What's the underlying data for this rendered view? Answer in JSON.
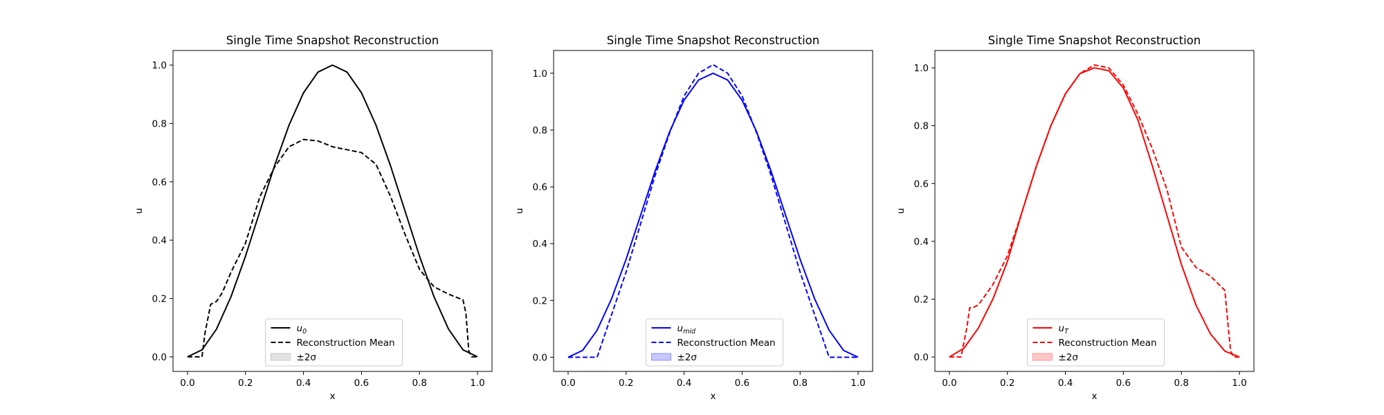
{
  "chart_data": [
    {
      "type": "line",
      "title": "Single Time Snapshot Reconstruction",
      "xlabel": "x",
      "ylabel": "u",
      "xlim": [
        -0.05,
        1.05
      ],
      "ylim": [
        -0.05,
        1.05
      ],
      "xticks": [
        "0.0",
        "0.2",
        "0.4",
        "0.6",
        "0.8",
        "1.0"
      ],
      "yticks": [
        "0.0",
        "0.2",
        "0.4",
        "0.6",
        "0.8",
        "1.0"
      ],
      "grid": false,
      "legend_position": "bottom-center",
      "color": "#000000",
      "band_color": "#808080",
      "series": [
        {
          "name": "u_0",
          "label_main": "u",
          "label_sub": "0",
          "style": "solid",
          "x": [
            0.0,
            0.05,
            0.1,
            0.15,
            0.2,
            0.25,
            0.3,
            0.35,
            0.4,
            0.45,
            0.5,
            0.55,
            0.6,
            0.65,
            0.7,
            0.75,
            0.8,
            0.85,
            0.9,
            0.95,
            1.0
          ],
          "y": [
            0.0,
            0.024,
            0.095,
            0.206,
            0.345,
            0.5,
            0.655,
            0.794,
            0.905,
            0.976,
            1.0,
            0.976,
            0.905,
            0.794,
            0.655,
            0.5,
            0.345,
            0.206,
            0.095,
            0.024,
            0.0
          ]
        },
        {
          "name": "Reconstruction Mean",
          "style": "dashed",
          "x": [
            0.0,
            0.05,
            0.06,
            0.08,
            0.1,
            0.12,
            0.15,
            0.2,
            0.25,
            0.3,
            0.35,
            0.4,
            0.45,
            0.5,
            0.55,
            0.6,
            0.65,
            0.7,
            0.75,
            0.8,
            0.85,
            0.9,
            0.95,
            0.96,
            0.97,
            0.98,
            1.0
          ],
          "y": [
            0.0,
            0.0,
            0.08,
            0.18,
            0.19,
            0.22,
            0.29,
            0.39,
            0.55,
            0.65,
            0.72,
            0.745,
            0.74,
            0.72,
            0.71,
            0.7,
            0.66,
            0.55,
            0.42,
            0.3,
            0.24,
            0.215,
            0.195,
            0.15,
            0.02,
            0.0,
            0.0
          ]
        }
      ],
      "band": {
        "name": "±2σ",
        "lower": [],
        "upper": []
      }
    },
    {
      "type": "line",
      "title": "Single Time Snapshot Reconstruction",
      "xlabel": "x",
      "ylabel": "u",
      "xlim": [
        -0.05,
        1.05
      ],
      "ylim": [
        -0.05,
        1.08
      ],
      "xticks": [
        "0.0",
        "0.2",
        "0.4",
        "0.6",
        "0.8",
        "1.0"
      ],
      "yticks": [
        "0.0",
        "0.2",
        "0.4",
        "0.6",
        "0.8",
        "1.0"
      ],
      "grid": false,
      "legend_position": "bottom-center",
      "color": "#0000ff",
      "band_color": "#0000ff",
      "series": [
        {
          "name": "u_mid",
          "label_main": "u",
          "label_sub": "mid",
          "style": "solid",
          "x": [
            0.0,
            0.05,
            0.1,
            0.15,
            0.2,
            0.25,
            0.3,
            0.35,
            0.4,
            0.45,
            0.5,
            0.55,
            0.6,
            0.65,
            0.7,
            0.75,
            0.8,
            0.85,
            0.9,
            0.95,
            1.0
          ],
          "y": [
            0.0,
            0.024,
            0.095,
            0.206,
            0.345,
            0.5,
            0.655,
            0.794,
            0.905,
            0.976,
            1.0,
            0.976,
            0.905,
            0.794,
            0.655,
            0.5,
            0.345,
            0.206,
            0.095,
            0.024,
            0.0
          ]
        },
        {
          "name": "Reconstruction Mean",
          "style": "dashed",
          "x": [
            0.0,
            0.05,
            0.1,
            0.15,
            0.2,
            0.25,
            0.3,
            0.35,
            0.4,
            0.45,
            0.5,
            0.55,
            0.6,
            0.65,
            0.7,
            0.75,
            0.8,
            0.85,
            0.9,
            0.95,
            1.0
          ],
          "y": [
            0.0,
            0.0,
            0.0,
            0.15,
            0.3,
            0.47,
            0.64,
            0.79,
            0.92,
            1.0,
            1.03,
            1.0,
            0.92,
            0.79,
            0.64,
            0.47,
            0.3,
            0.15,
            0.0,
            0.0,
            0.0
          ]
        }
      ],
      "band": {
        "name": "±2σ",
        "lower": [],
        "upper": []
      }
    },
    {
      "type": "line",
      "title": "Single Time Snapshot Reconstruction",
      "xlabel": "x",
      "ylabel": "u",
      "xlim": [
        -0.05,
        1.05
      ],
      "ylim": [
        -0.05,
        1.06
      ],
      "xticks": [
        "0.0",
        "0.2",
        "0.4",
        "0.6",
        "0.8",
        "1.0"
      ],
      "yticks": [
        "0.0",
        "0.2",
        "0.4",
        "0.6",
        "0.8",
        "1.0"
      ],
      "grid": false,
      "legend_position": "bottom-center",
      "color": "#ff0000",
      "band_color": "#ff0000",
      "series": [
        {
          "name": "u_T",
          "label_main": "u",
          "label_sub": "T",
          "style": "solid",
          "x": [
            0.0,
            0.05,
            0.1,
            0.15,
            0.2,
            0.25,
            0.3,
            0.35,
            0.4,
            0.45,
            0.5,
            0.55,
            0.6,
            0.65,
            0.7,
            0.75,
            0.8,
            0.85,
            0.9,
            0.95,
            1.0
          ],
          "y": [
            0.0,
            0.03,
            0.1,
            0.2,
            0.33,
            0.5,
            0.66,
            0.8,
            0.91,
            0.98,
            1.0,
            0.99,
            0.93,
            0.82,
            0.66,
            0.49,
            0.32,
            0.18,
            0.08,
            0.02,
            0.0
          ]
        },
        {
          "name": "Reconstruction Mean",
          "style": "dashed",
          "x": [
            0.0,
            0.04,
            0.06,
            0.07,
            0.08,
            0.1,
            0.15,
            0.2,
            0.25,
            0.3,
            0.35,
            0.4,
            0.45,
            0.5,
            0.55,
            0.6,
            0.65,
            0.7,
            0.75,
            0.8,
            0.85,
            0.9,
            0.95,
            0.96,
            0.97,
            0.98,
            1.0
          ],
          "y": [
            0.0,
            0.0,
            0.1,
            0.17,
            0.17,
            0.18,
            0.25,
            0.35,
            0.5,
            0.66,
            0.8,
            0.91,
            0.98,
            1.01,
            1.0,
            0.94,
            0.84,
            0.72,
            0.58,
            0.38,
            0.31,
            0.28,
            0.23,
            0.12,
            0.02,
            0.0,
            0.0
          ]
        }
      ],
      "band": {
        "name": "±2σ",
        "lower": [],
        "upper": []
      }
    }
  ]
}
